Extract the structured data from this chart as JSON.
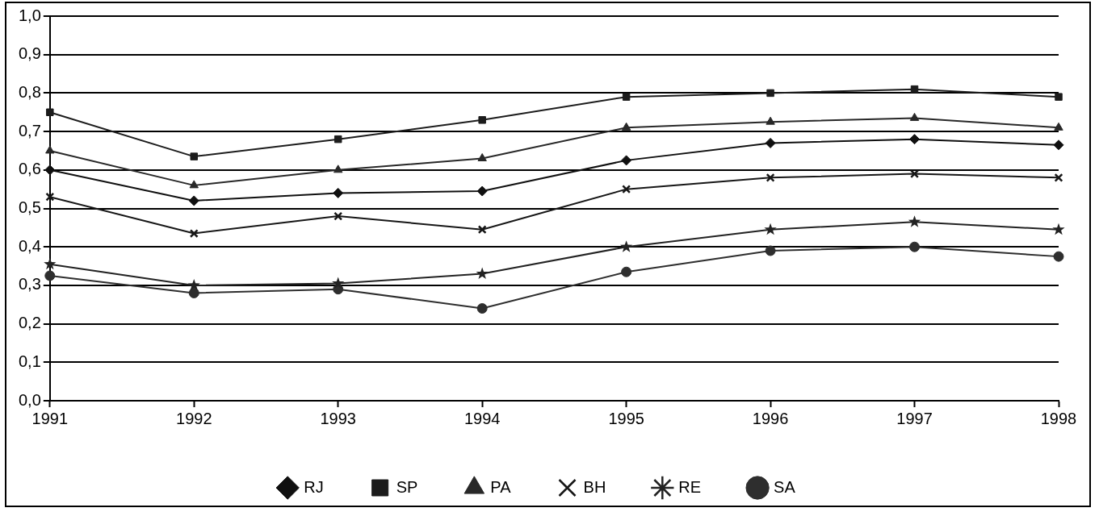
{
  "chart_data": {
    "type": "line",
    "x": [
      1991,
      1992,
      1993,
      1994,
      1995,
      1996,
      1997,
      1998
    ],
    "xlim": [
      1991,
      1998
    ],
    "xticks": [
      1991,
      1992,
      1993,
      1994,
      1995,
      1996,
      1997,
      1998
    ],
    "ylim": [
      0,
      1
    ],
    "yticks": [
      {
        "value": 0,
        "label": "0,0"
      },
      {
        "value": 0.1,
        "label": "0,1"
      },
      {
        "value": 0.2,
        "label": "0,2"
      },
      {
        "value": 0.3,
        "label": "0,3"
      },
      {
        "value": 0.4,
        "label": "0,4"
      },
      {
        "value": 0.5,
        "label": "0,5"
      },
      {
        "value": 0.6,
        "label": "0,6"
      },
      {
        "value": 0.7,
        "label": "0,7"
      },
      {
        "value": 0.8,
        "label": "0,8"
      },
      {
        "value": 0.9,
        "label": "0,9"
      },
      {
        "value": 1,
        "label": "1,0"
      }
    ],
    "grid": "y",
    "legend": "bottom",
    "line_style": "solid",
    "series": [
      {
        "name": "RJ",
        "color": "#101010",
        "marker": "diamond",
        "values": [
          0.6,
          0.52,
          0.54,
          0.545,
          0.625,
          0.67,
          0.68,
          0.665
        ]
      },
      {
        "name": "SP",
        "color": "#1c1c1c",
        "marker": "square",
        "values": [
          0.75,
          0.635,
          0.68,
          0.73,
          0.79,
          0.8,
          0.81,
          0.79
        ]
      },
      {
        "name": "PA",
        "color": "#282828",
        "marker": "triangle",
        "values": [
          0.65,
          0.56,
          0.6,
          0.63,
          0.71,
          0.725,
          0.735,
          0.71
        ]
      },
      {
        "name": "BH",
        "color": "#161616",
        "marker": "cross",
        "values": [
          0.53,
          0.435,
          0.48,
          0.445,
          0.55,
          0.58,
          0.59,
          0.58
        ]
      },
      {
        "name": "RE",
        "color": "#222222",
        "marker": "star",
        "values": [
          0.355,
          0.3,
          0.305,
          0.33,
          0.4,
          0.445,
          0.465,
          0.445
        ]
      },
      {
        "name": "SA",
        "color": "#2e2e2e",
        "marker": "circle",
        "values": [
          0.325,
          0.28,
          0.29,
          0.24,
          0.335,
          0.39,
          0.4,
          0.375
        ]
      }
    ]
  }
}
